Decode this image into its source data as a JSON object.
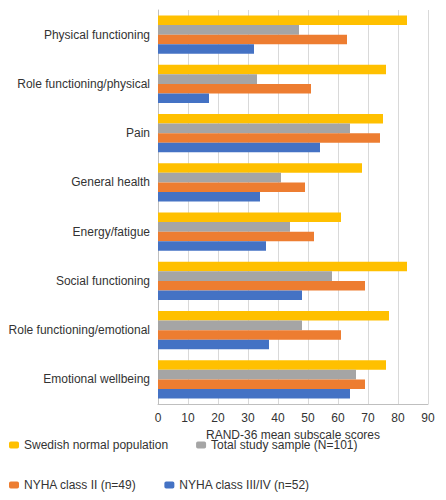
{
  "chart_data": {
    "type": "bar",
    "orientation": "horizontal",
    "categories": [
      "Physical functioning",
      "Role functioning/physical",
      "Pain",
      "General health",
      "Energy/fatigue",
      "Social functioning",
      "Role functioning/emotional",
      "Emotional wellbeing"
    ],
    "series": [
      {
        "name": "Swedish normal population",
        "color": "#FFC000",
        "values": [
          83,
          76,
          75,
          68,
          61,
          83,
          77,
          76
        ]
      },
      {
        "name": "Total study sample (N=101)",
        "color": "#A5A5A5",
        "values": [
          47,
          33,
          64,
          41,
          44,
          58,
          48,
          66
        ]
      },
      {
        "name": "NYHA class II (n=49)",
        "color": "#ED7D31",
        "values": [
          63,
          51,
          74,
          49,
          52,
          69,
          61,
          69
        ]
      },
      {
        "name": "NYHA class III/IV (n=52)",
        "color": "#4472C4",
        "values": [
          32,
          17,
          54,
          34,
          36,
          48,
          37,
          64
        ]
      }
    ],
    "xlabel": "RAND-36 mean subscale scores",
    "xlim": [
      0,
      90
    ],
    "xticks": [
      0,
      10,
      20,
      30,
      40,
      50,
      60,
      70,
      80,
      90
    ],
    "grid": true,
    "legend": "bottom"
  }
}
